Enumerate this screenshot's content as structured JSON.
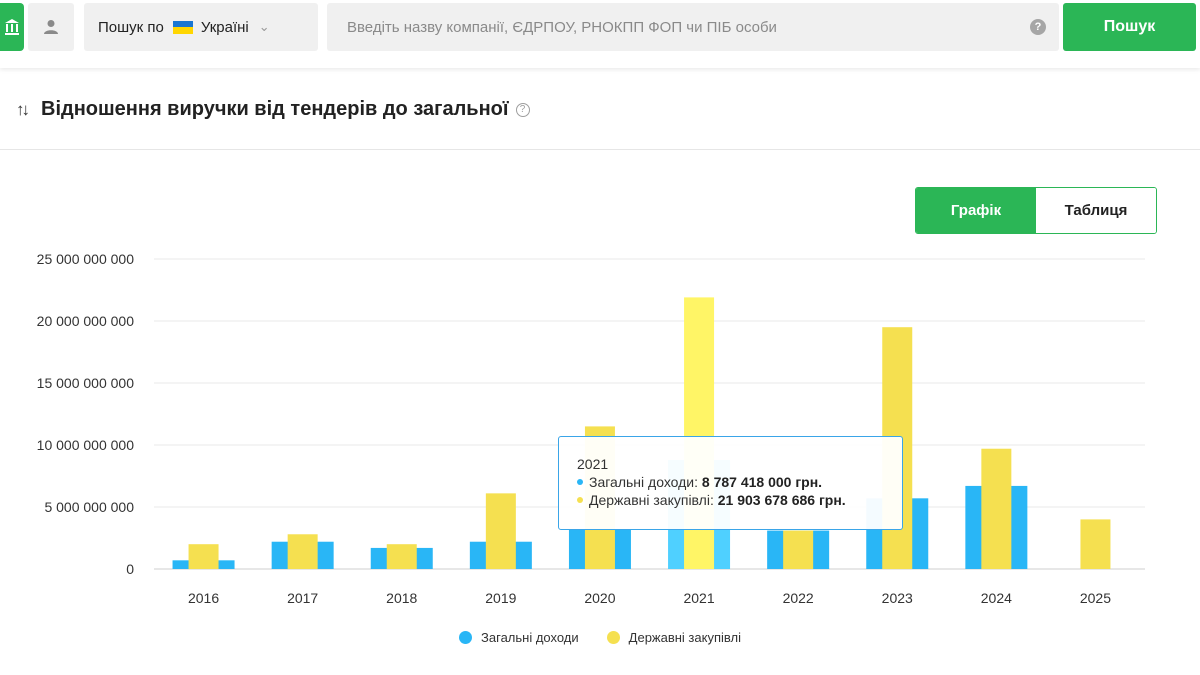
{
  "search": {
    "region_prefix": "Пошук по",
    "region_name": "Україні",
    "placeholder": "Введіть назву компанії, ЄДРПОУ, РНОКПП ФОП чи ПІБ особи",
    "help_glyph": "?",
    "button_label": "Пошук"
  },
  "section": {
    "title": "Відношення виручки від тендерів до загальної"
  },
  "view_toggle": {
    "chart_label": "Графік",
    "table_label": "Таблиця",
    "active": "chart"
  },
  "colors": {
    "accent": "#2bb656",
    "series_blue": "#29b6f6",
    "series_yellow": "#f5e050"
  },
  "chart_data": {
    "type": "bar",
    "categories": [
      "2016",
      "2017",
      "2018",
      "2019",
      "2020",
      "2021",
      "2022",
      "2023",
      "2024",
      "2025"
    ],
    "series": [
      {
        "name": "Загальні доходи",
        "color": "#29b6f6",
        "values": [
          700000000,
          2200000000,
          1700000000,
          2200000000,
          3200000000,
          8787418000,
          3100000000,
          5700000000,
          6700000000,
          null
        ]
      },
      {
        "name": "Державні закупівлі",
        "color": "#f5e050",
        "values": [
          2000000000,
          2800000000,
          2000000000,
          6100000000,
          11500000000,
          21903678686,
          3100000000,
          19500000000,
          9700000000,
          4000000000
        ]
      }
    ],
    "y_ticks": [
      "0",
      "5 000 000 000",
      "10 000 000 000",
      "15 000 000 000",
      "20 000 000 000",
      "25 000 000 000"
    ],
    "ylim": [
      0,
      25000000000
    ],
    "grid": true,
    "legend_position": "bottom"
  },
  "tooltip": {
    "year": "2021",
    "line1_label": "Загальні доходи:",
    "line1_value": "8 787 418 000 грн.",
    "line2_label": "Державні закупівлі:",
    "line2_value": "21 903 678 686 грн."
  }
}
